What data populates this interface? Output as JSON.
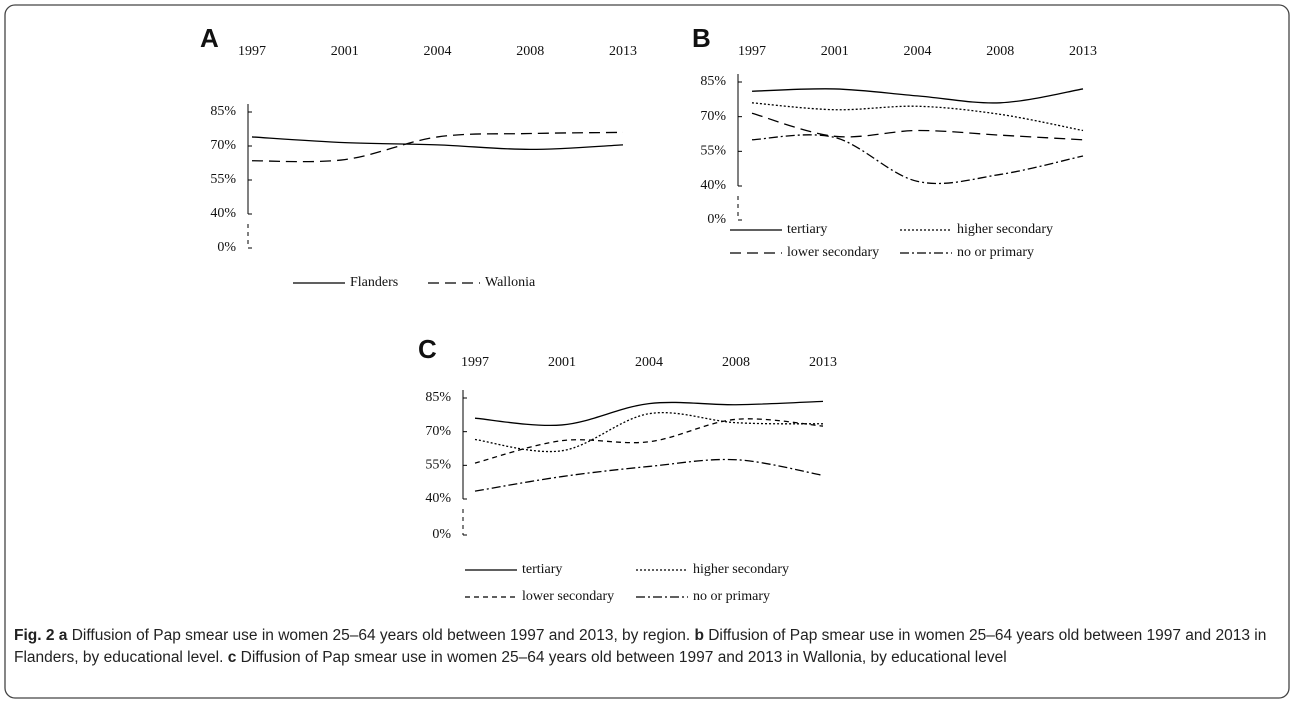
{
  "chart_data": [
    {
      "type": "line",
      "title": "A",
      "categories": [
        "1997",
        "2001",
        "2004",
        "2008",
        "2013"
      ],
      "series": [
        {
          "name": "Flanders",
          "color": "#000000",
          "dash": "solid",
          "values": [
            74,
            71.5,
            70.5,
            68.5,
            70.5
          ]
        },
        {
          "name": "Wallonia",
          "color": "#000000",
          "dash": "dashed",
          "values": [
            63.5,
            64,
            74,
            75.5,
            76
          ]
        }
      ],
      "ylim": [
        0,
        85
      ],
      "y_break": [
        0,
        40
      ],
      "yticks": [
        {
          "value": 0,
          "label": "0%"
        },
        {
          "value": 40,
          "label": "40%"
        },
        {
          "value": 55,
          "label": "55%"
        },
        {
          "value": 70,
          "label": "70%"
        },
        {
          "value": 85,
          "label": "85%"
        }
      ],
      "legend": "bottom"
    },
    {
      "type": "line",
      "title": "B",
      "categories": [
        "1997",
        "2001",
        "2004",
        "2008",
        "2013"
      ],
      "series": [
        {
          "name": "tertiary",
          "color": "#000000",
          "dash": "solid",
          "values": [
            81,
            82,
            79,
            76,
            82
          ]
        },
        {
          "name": "higher secondary",
          "color": "#000000",
          "dash": "dotted",
          "values": [
            76,
            73,
            74.5,
            71,
            64
          ]
        },
        {
          "name": "lower secondary",
          "color": "#000000",
          "dash": "dashed",
          "values": [
            71.5,
            61.5,
            64,
            62,
            60
          ]
        },
        {
          "name": "no or primary",
          "color": "#000000",
          "dash": "dashdot",
          "values": [
            60,
            61,
            42,
            45,
            53
          ]
        }
      ],
      "ylim": [
        0,
        85
      ],
      "y_break": [
        0,
        40
      ],
      "yticks": [
        {
          "value": 0,
          "label": "0%"
        },
        {
          "value": 40,
          "label": "40%"
        },
        {
          "value": 55,
          "label": "55%"
        },
        {
          "value": 70,
          "label": "70%"
        },
        {
          "value": 85,
          "label": "85%"
        }
      ],
      "legend": "bottom"
    },
    {
      "type": "line",
      "title": "C",
      "categories": [
        "1997",
        "2001",
        "2004",
        "2008",
        "2013"
      ],
      "series": [
        {
          "name": "tertiary",
          "color": "#000000",
          "dash": "solid",
          "values": [
            76,
            73,
            82.5,
            82,
            83.5
          ]
        },
        {
          "name": "higher secondary",
          "color": "#000000",
          "dash": "dotted",
          "values": [
            66.5,
            61.5,
            78,
            74,
            73.5
          ]
        },
        {
          "name": "lower secondary",
          "color": "#000000",
          "dash": "medium-dashed",
          "values": [
            56,
            66,
            65.5,
            75.5,
            72.5
          ]
        },
        {
          "name": "no or primary",
          "color": "#000000",
          "dash": "dashdot",
          "values": [
            43.5,
            50,
            54.5,
            57.5,
            50.5
          ]
        }
      ],
      "ylim": [
        0,
        85
      ],
      "y_break": [
        0,
        40
      ],
      "yticks": [
        {
          "value": 0,
          "label": "0%"
        },
        {
          "value": 40,
          "label": "40%"
        },
        {
          "value": 55,
          "label": "55%"
        },
        {
          "value": 70,
          "label": "70%"
        },
        {
          "value": 85,
          "label": "85%"
        }
      ],
      "legend": "bottom"
    }
  ],
  "caption": {
    "figure": "Fig. 2",
    "parts": [
      {
        "label": "a",
        "text": "Diffusion of Pap smear use in women 25–64 years old between 1997 and 2013, by region."
      },
      {
        "label": "b",
        "text": "Diffusion of Pap smear use in women 25–64 years old between 1997 and 2013 in Flanders, by educational level."
      },
      {
        "label": "c",
        "text": "Diffusion of Pap smear use in women 25–64 years old between 1997 and 2013 in Wallonia, by educational level"
      }
    ]
  }
}
